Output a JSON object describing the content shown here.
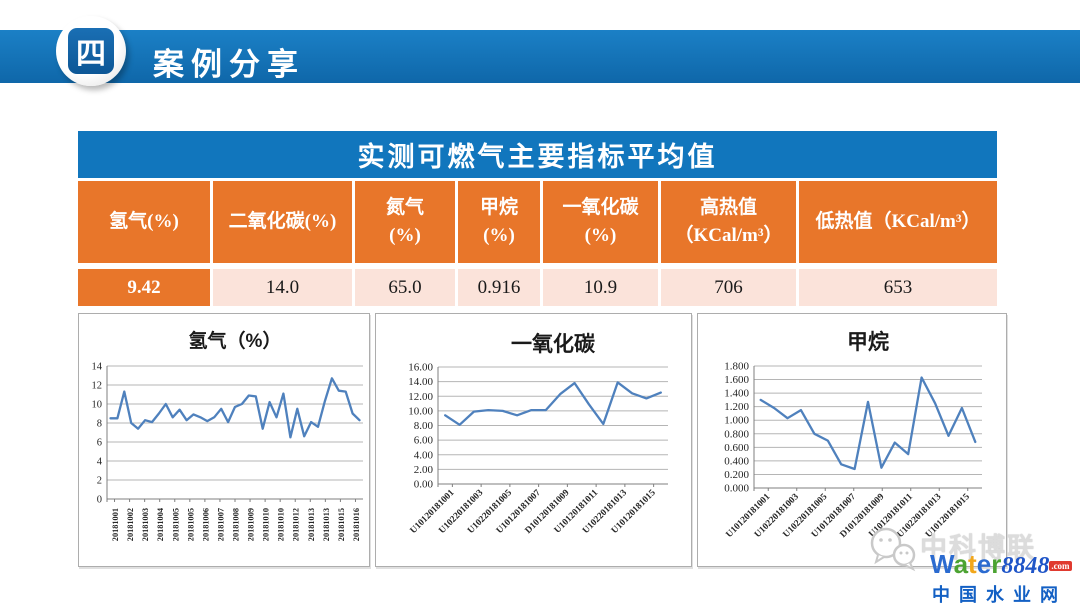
{
  "header": {
    "badge": "四",
    "title": "案例分享"
  },
  "table": {
    "title": "实测可燃气主要指标平均值",
    "headers": [
      "氢气(%)",
      "二氧化碳(%)",
      "氮气\n(%)",
      "甲烷\n(%)",
      "一氧化碳\n(%)",
      "高热值\n（KCal/m³）",
      "低热值（KCal/m³）"
    ],
    "values": [
      "9.42",
      "14.0",
      "65.0",
      "0.916",
      "10.9",
      "706",
      "653"
    ]
  },
  "colors": {
    "header_bar_blue": "#1472b7",
    "table_title_blue": "#1176bd",
    "table_orange": "#e8762a",
    "table_row_pink": "#fbe3da",
    "chart_line_blue": "#4f81bd"
  },
  "chart_data": [
    {
      "type": "line",
      "title": "氢气（%）",
      "xlabel": "",
      "ylabel": "",
      "ylim": [
        0,
        14
      ],
      "ytick_values": [
        0,
        2,
        4,
        6,
        8,
        10,
        12,
        14
      ],
      "ytick_labels": [
        "0",
        "2",
        "4",
        "6",
        "8",
        "10",
        "12",
        "14"
      ],
      "x_labels": [
        "20181001",
        "20181002",
        "20181003",
        "20181004",
        "20181005",
        "20181005",
        "20181006",
        "20181007",
        "20181008",
        "20181009",
        "20181010",
        "20181010",
        "20181012",
        "20181013",
        "20181013",
        "20181015",
        "20181016"
      ],
      "values": [
        8.5,
        8.5,
        11.3,
        8.0,
        7.4,
        8.3,
        8.1,
        9.0,
        10.0,
        8.6,
        9.4,
        8.3,
        8.9,
        8.6,
        8.2,
        8.6,
        9.5,
        8.1,
        9.7,
        10.0,
        10.9,
        10.8,
        7.4,
        10.2,
        8.6,
        11.1,
        6.5,
        9.5,
        6.6,
        8.1,
        7.6,
        10.3,
        12.7,
        11.4,
        11.3,
        9.0,
        8.3
      ],
      "x_label_rotation": -90,
      "series_color": "#4f81bd",
      "grid": true,
      "legend": "none"
    },
    {
      "type": "line",
      "title": "一氧化碳",
      "xlabel": "",
      "ylabel": "",
      "ylim": [
        0,
        16
      ],
      "ytick_values": [
        0,
        2,
        4,
        6,
        8,
        10,
        12,
        14,
        16
      ],
      "ytick_labels": [
        "0.00",
        "2.00",
        "4.00",
        "6.00",
        "8.00",
        "10.00",
        "12.00",
        "14.00",
        "16.00"
      ],
      "x_labels": [
        "U10120181001",
        "U10220181003",
        "U10220181005",
        "U10120181007",
        "D10120181009",
        "U10120181011",
        "U10220181013",
        "U10120181015"
      ],
      "values": [
        9.4,
        8.1,
        9.9,
        10.1,
        10.0,
        9.4,
        10.1,
        10.1,
        12.3,
        13.8,
        10.9,
        8.2,
        13.9,
        12.4,
        11.7,
        12.5
      ],
      "x_label_rotation": -45,
      "series_color": "#4f81bd",
      "grid": true,
      "legend": "none"
    },
    {
      "type": "line",
      "title": "甲烷",
      "xlabel": "",
      "ylabel": "",
      "ylim": [
        0,
        1.8
      ],
      "ytick_values": [
        0,
        0.2,
        0.4,
        0.6,
        0.8,
        1.0,
        1.2,
        1.4,
        1.6,
        1.8
      ],
      "ytick_labels": [
        "0.000",
        "0.200",
        "0.400",
        "0.600",
        "0.800",
        "1.000",
        "1.200",
        "1.400",
        "1.600",
        "1.800"
      ],
      "x_labels": [
        "U10120181001",
        "U10220181003",
        "U10220181005",
        "U10120181007",
        "D10120181009",
        "U10120181011",
        "U10220181013",
        "U10120181015"
      ],
      "values": [
        1.3,
        1.18,
        1.03,
        1.15,
        0.8,
        0.7,
        0.35,
        0.28,
        1.27,
        0.3,
        0.67,
        0.5,
        1.63,
        1.25,
        0.77,
        1.18,
        0.68
      ],
      "x_label_rotation": -45,
      "series_color": "#4f81bd",
      "grid": true,
      "legend": "none"
    }
  ],
  "watermark": {
    "brand_cn": "中科博联",
    "site_letters": [
      {
        "ch": "W",
        "color": "#2b6bd0"
      },
      {
        "ch": "a",
        "color": "#4ca332"
      },
      {
        "ch": "t",
        "color": "#f2a71b"
      },
      {
        "ch": "e",
        "color": "#2b6bd0"
      },
      {
        "ch": "r",
        "color": "#4ca332"
      }
    ],
    "site_number": "8848",
    "site_tld": ".com",
    "site_cn": "中国水业网"
  }
}
